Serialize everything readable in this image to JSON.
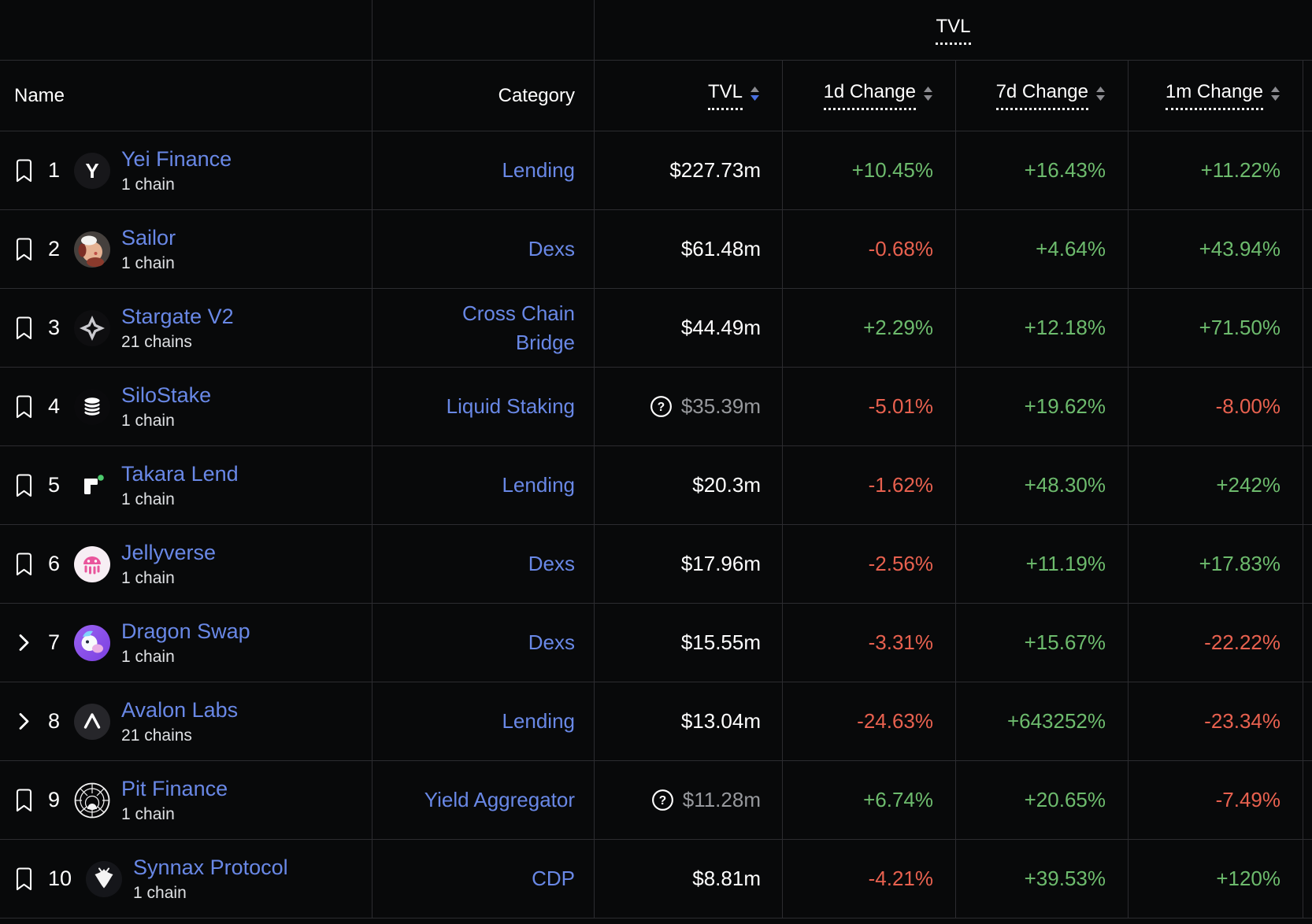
{
  "colors": {
    "link_blue": "#6988e6",
    "positive_green": "#6dbb6d",
    "negative_red": "#e8614f",
    "muted_value_gray": "#97999d",
    "sort_active_blue": "#4a70e0",
    "grid_line": "#2c2c30",
    "background": "#08090a"
  },
  "header": {
    "group_tvl_label": "TVL",
    "columns": {
      "name": "Name",
      "category": "Category",
      "tvl": "TVL",
      "change_1d": "1d Change",
      "change_7d": "7d Change",
      "change_1m": "1m Change"
    }
  },
  "sort": {
    "active_column": "tvl",
    "direction": "desc"
  },
  "rows": [
    {
      "rank": "1",
      "action": "bookmark",
      "logo": "yei-finance-logo",
      "name": "Yei Finance",
      "chains": "1 chain",
      "category": "Lending",
      "tvl": "$227.73m",
      "tvl_has_note": false,
      "change_1d": "+10.45%",
      "change_7d": "+16.43%",
      "change_1m": "+11.22%"
    },
    {
      "rank": "2",
      "action": "bookmark",
      "logo": "sailor-logo",
      "name": "Sailor",
      "chains": "1 chain",
      "category": "Dexs",
      "tvl": "$61.48m",
      "tvl_has_note": false,
      "change_1d": "-0.68%",
      "change_7d": "+4.64%",
      "change_1m": "+43.94%"
    },
    {
      "rank": "3",
      "action": "bookmark",
      "logo": "stargate-v2-logo",
      "name": "Stargate V2",
      "chains": "21 chains",
      "category": "Cross Chain Bridge",
      "tvl": "$44.49m",
      "tvl_has_note": false,
      "change_1d": "+2.29%",
      "change_7d": "+12.18%",
      "change_1m": "+71.50%"
    },
    {
      "rank": "4",
      "action": "bookmark",
      "logo": "silostake-logo",
      "name": "SiloStake",
      "chains": "1 chain",
      "category": "Liquid Staking",
      "tvl": "$35.39m",
      "tvl_has_note": true,
      "change_1d": "-5.01%",
      "change_7d": "+19.62%",
      "change_1m": "-8.00%"
    },
    {
      "rank": "5",
      "action": "bookmark",
      "logo": "takara-lend-logo",
      "name": "Takara Lend",
      "chains": "1 chain",
      "category": "Lending",
      "tvl": "$20.3m",
      "tvl_has_note": false,
      "change_1d": "-1.62%",
      "change_7d": "+48.30%",
      "change_1m": "+242%"
    },
    {
      "rank": "6",
      "action": "bookmark",
      "logo": "jellyverse-logo",
      "name": "Jellyverse",
      "chains": "1 chain",
      "category": "Dexs",
      "tvl": "$17.96m",
      "tvl_has_note": false,
      "change_1d": "-2.56%",
      "change_7d": "+11.19%",
      "change_1m": "+17.83%"
    },
    {
      "rank": "7",
      "action": "expand",
      "logo": "dragon-swap-logo",
      "name": "Dragon Swap",
      "chains": "1 chain",
      "category": "Dexs",
      "tvl": "$15.55m",
      "tvl_has_note": false,
      "change_1d": "-3.31%",
      "change_7d": "+15.67%",
      "change_1m": "-22.22%"
    },
    {
      "rank": "8",
      "action": "expand",
      "logo": "avalon-labs-logo",
      "name": "Avalon Labs",
      "chains": "21 chains",
      "category": "Lending",
      "tvl": "$13.04m",
      "tvl_has_note": false,
      "change_1d": "-24.63%",
      "change_7d": "+643252%",
      "change_1m": "-23.34%"
    },
    {
      "rank": "9",
      "action": "bookmark",
      "logo": "pit-finance-logo",
      "name": "Pit Finance",
      "chains": "1 chain",
      "category": "Yield Aggregator",
      "tvl": "$11.28m",
      "tvl_has_note": true,
      "change_1d": "+6.74%",
      "change_7d": "+20.65%",
      "change_1m": "-7.49%"
    },
    {
      "rank": "10",
      "action": "bookmark",
      "logo": "synnax-protocol-logo",
      "name": "Synnax Protocol",
      "chains": "1 chain",
      "category": "CDP",
      "tvl": "$8.81m",
      "tvl_has_note": false,
      "change_1d": "-4.21%",
      "change_7d": "+39.53%",
      "change_1m": "+120%"
    }
  ]
}
